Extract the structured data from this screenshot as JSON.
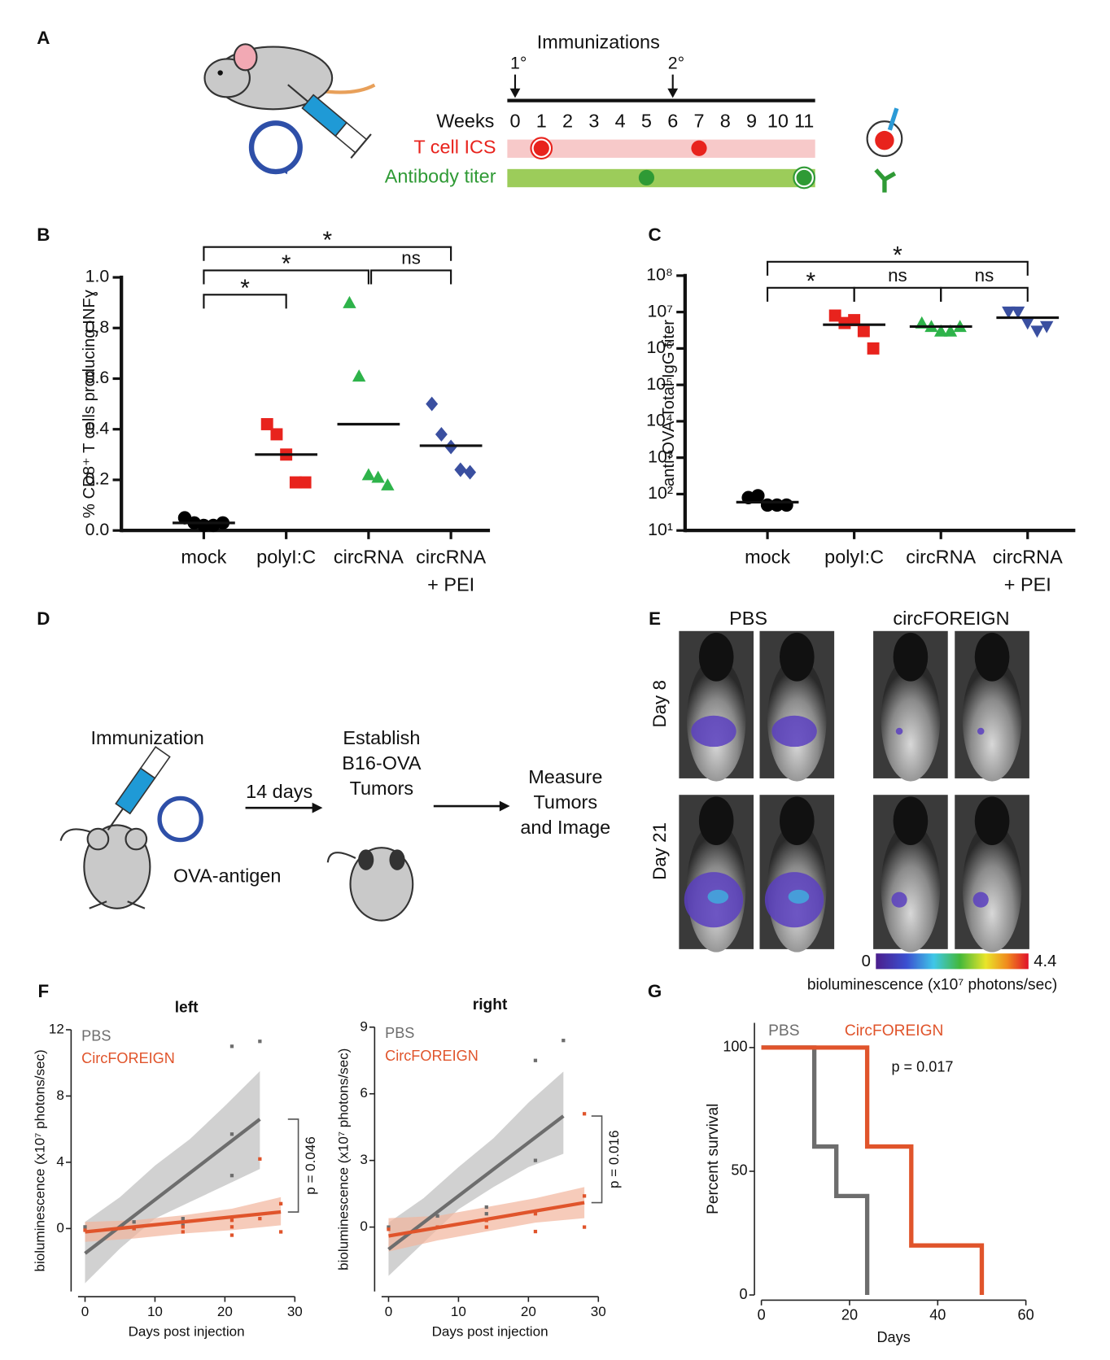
{
  "panel_labels": [
    "A",
    "B",
    "C",
    "D",
    "E",
    "F",
    "G"
  ],
  "panel_a": {
    "title": "Immunizations",
    "dose_labels": [
      "1°",
      "2°"
    ],
    "dose_weeks": [
      0,
      6
    ],
    "weeks_label": "Weeks",
    "weeks": [
      0,
      1,
      2,
      3,
      4,
      5,
      6,
      7,
      8,
      9,
      10,
      11
    ],
    "rows": [
      {
        "label": "T cell ICS",
        "color": "#e8231d",
        "bar_color": "#f7c9c9",
        "points": [
          1,
          7
        ],
        "ringed": [
          1
        ]
      },
      {
        "label": "Antibody titer",
        "color": "#2f9a35",
        "bar_color": "#9ccc5a",
        "points": [
          5,
          11
        ],
        "ringed": [
          11
        ]
      }
    ]
  },
  "panel_d": {
    "steps": [
      [
        "Immunization"
      ],
      [
        "14 days"
      ],
      [
        "Establish",
        "B16-OVA",
        "Tumors"
      ],
      [
        "Measure",
        "Tumors",
        "and Image"
      ]
    ],
    "antigen": "OVA-antigen"
  },
  "panel_e": {
    "columns": [
      "PBS",
      "circFOREIGN"
    ],
    "rows": [
      "Day 8",
      "Day 21"
    ],
    "scale_min": "0",
    "scale_max": "4.4",
    "scale_label": "bioluminescence (x10⁷ photons/sec)"
  },
  "chart_data": [
    {
      "type": "strip",
      "ylabel": "% CD8⁺ T cells producing INFɣ",
      "categories": [
        "mock",
        "polyI:C",
        "circRNA",
        "circRNA\n+ PEI"
      ],
      "colors": [
        "#000000",
        "#e8231d",
        "#2eb34a",
        "#3a4fa0"
      ],
      "markers": [
        "circle",
        "square",
        "triangle",
        "diamond"
      ],
      "points": [
        [
          0.05,
          0.03,
          0.02,
          0.02,
          0.03
        ],
        [
          0.42,
          0.38,
          0.3,
          0.19,
          0.19
        ],
        [
          0.9,
          0.61,
          0.22,
          0.21,
          0.18
        ],
        [
          0.5,
          0.38,
          0.33,
          0.24,
          0.23
        ]
      ],
      "means": [
        0.03,
        0.3,
        0.42,
        0.335
      ],
      "ylim": [
        0,
        1
      ],
      "yticks": [
        {
          "value": 0,
          "label": "0.0"
        },
        {
          "value": 0.2,
          "label": "0.2"
        },
        {
          "value": 0.4,
          "label": "0.4"
        },
        {
          "value": 0.6,
          "label": "0.6"
        },
        {
          "value": 0.8,
          "label": "0.8"
        },
        {
          "value": 1,
          "label": "1.0"
        }
      ],
      "comparisons": [
        {
          "pair": [
            0,
            1
          ],
          "label": "*"
        },
        {
          "pair": [
            0,
            2
          ],
          "label": "*"
        },
        {
          "pair": [
            0,
            3
          ],
          "label": "*"
        },
        {
          "pair": [
            2,
            3
          ],
          "label": "ns"
        }
      ]
    },
    {
      "type": "strip",
      "log_scale": true,
      "ylabel": "anti-OVA Total IgG titer",
      "categories": [
        "mock",
        "polyI:C",
        "circRNA",
        "circRNA\n+ PEI"
      ],
      "colors": [
        "#000000",
        "#e8231d",
        "#2eb34a",
        "#3a4fa0"
      ],
      "markers": [
        "circle",
        "square",
        "triangle",
        "triangle-down"
      ],
      "points": [
        [
          80,
          90,
          50,
          50,
          50
        ],
        [
          8000000,
          5000000,
          6000000,
          3000000,
          1000000
        ],
        [
          5000000,
          4000000,
          3000000,
          3000000,
          4000000
        ],
        [
          10000000,
          10000000,
          5000000,
          3000000,
          4000000
        ]
      ],
      "means": [
        60,
        4500000,
        4000000,
        7000000
      ],
      "ylim": [
        10,
        100000000
      ],
      "yticks": [
        {
          "value": 10,
          "label": "10¹"
        },
        {
          "value": 100,
          "label": "10²"
        },
        {
          "value": 1000,
          "label": "10³"
        },
        {
          "value": 10000,
          "label": "10⁴"
        },
        {
          "value": 100000,
          "label": "10⁵"
        },
        {
          "value": 1000000,
          "label": "10⁶"
        },
        {
          "value": 10000000,
          "label": "10⁷"
        },
        {
          "value": 100000000,
          "label": "10⁸"
        }
      ],
      "comparisons": [
        {
          "pair": [
            0,
            1
          ],
          "label": "*"
        },
        {
          "pair": [
            1,
            2
          ],
          "label": "ns"
        },
        {
          "pair": [
            2,
            3
          ],
          "label": "ns"
        },
        {
          "pair": [
            0,
            3
          ],
          "label": "*"
        }
      ]
    },
    {
      "type": "scatter",
      "title": "left",
      "xlabel": "Days post injection",
      "ylabel": "bioluminescence (x10⁷ photons/sec)",
      "xlim": [
        -1,
        30
      ],
      "xticks": [
        0,
        10,
        20,
        30
      ],
      "ylim": [
        -3.8,
        12
      ],
      "yticks": [
        0,
        4,
        8,
        12
      ],
      "annotation": "p = 0.046",
      "series": [
        {
          "name": "PBS",
          "color": "#6d6d6d",
          "band_color": "#bdbdbd",
          "x": [
            0,
            7,
            7,
            14,
            14,
            21,
            21,
            21,
            25
          ],
          "values": [
            0.1,
            0.4,
            0,
            0.6,
            0.2,
            11,
            5.7,
            3.2,
            11.3
          ],
          "fit": {
            "x": [
              0,
              25
            ],
            "values": [
              -1.5,
              6.6
            ]
          },
          "band": {
            "x": [
              0,
              5,
              10,
              15,
              20,
              25
            ],
            "lower": [
              -3.3,
              -1.2,
              0.6,
              1.6,
              2.6,
              3.6
            ],
            "upper": [
              0.4,
              1.9,
              3.8,
              5.4,
              7.4,
              9.5
            ]
          }
        },
        {
          "name": "CircFOREIGN",
          "color": "#e0542b",
          "band_color": "#f2b59c",
          "x": [
            0,
            7,
            14,
            14,
            21,
            21,
            21,
            25,
            25,
            28,
            28
          ],
          "values": [
            -0.1,
            0,
            0.1,
            -0.2,
            0.5,
            0.1,
            -0.4,
            4.2,
            0.6,
            1.5,
            -0.2
          ],
          "fit": {
            "x": [
              0,
              28
            ],
            "values": [
              -0.2,
              1
            ]
          },
          "band": {
            "x": [
              0,
              7,
              14,
              21,
              28
            ],
            "lower": [
              -0.8,
              -0.6,
              -0.3,
              -0.1,
              0.2
            ],
            "upper": [
              0.4,
              0.5,
              0.8,
              1.2,
              1.9
            ]
          }
        }
      ]
    },
    {
      "type": "scatter",
      "title": "right",
      "xlabel": "Days post injection",
      "ylabel": "bioluminescence (x10⁷ photons/sec)",
      "xlim": [
        -1,
        30
      ],
      "xticks": [
        0,
        10,
        20,
        30
      ],
      "ylim": [
        -2.9,
        9
      ],
      "yticks": [
        0,
        3,
        6,
        9
      ],
      "annotation": "p = 0.016",
      "series": [
        {
          "name": "PBS",
          "color": "#6d6d6d",
          "band_color": "#bdbdbd",
          "x": [
            0,
            7,
            14,
            14,
            21,
            21,
            25
          ],
          "values": [
            0,
            0.5,
            0.9,
            0.6,
            7.5,
            3,
            8.4
          ],
          "fit": {
            "x": [
              0,
              25
            ],
            "values": [
              -1,
              5
            ]
          },
          "band": {
            "x": [
              0,
              5,
              10,
              15,
              20,
              25
            ],
            "lower": [
              -2.2,
              -0.7,
              0.8,
              1.8,
              2.7,
              3.3
            ],
            "upper": [
              0.2,
              1.3,
              2.7,
              4,
              5.6,
              7
            ]
          }
        },
        {
          "name": "CircFOREIGN",
          "color": "#e0542b",
          "band_color": "#f2b59c",
          "x": [
            0,
            7,
            14,
            14,
            21,
            21,
            28,
            28,
            28
          ],
          "values": [
            -0.1,
            0,
            0.3,
            0,
            0.6,
            -0.2,
            5.1,
            1.4,
            0
          ],
          "fit": {
            "x": [
              0,
              28
            ],
            "values": [
              -0.4,
              1.1
            ]
          },
          "band": {
            "x": [
              0,
              7,
              14,
              21,
              28
            ],
            "lower": [
              -1.1,
              -0.6,
              -0.2,
              0.2,
              0.4
            ],
            "upper": [
              0.4,
              0.5,
              0.9,
              1.3,
              1.8
            ]
          }
        }
      ]
    },
    {
      "type": "line",
      "xlabel": "Days",
      "ylabel": "Percent survival",
      "xlim": [
        0,
        60
      ],
      "xticks": [
        0,
        20,
        40,
        60
      ],
      "ylim": [
        0,
        110
      ],
      "yticks": [
        0,
        50,
        100
      ],
      "annotation": "p = 0.017",
      "series": [
        {
          "name": "PBS",
          "color": "#6d6d6d",
          "x": [
            0,
            12,
            12,
            17,
            17,
            24,
            24
          ],
          "values": [
            100,
            100,
            60,
            60,
            40,
            40,
            0
          ]
        },
        {
          "name": "CircFOREIGN",
          "color": "#e0542b",
          "x": [
            0,
            24,
            24,
            34,
            34,
            50,
            50
          ],
          "values": [
            100,
            100,
            60,
            60,
            20,
            20,
            0
          ]
        }
      ]
    }
  ]
}
